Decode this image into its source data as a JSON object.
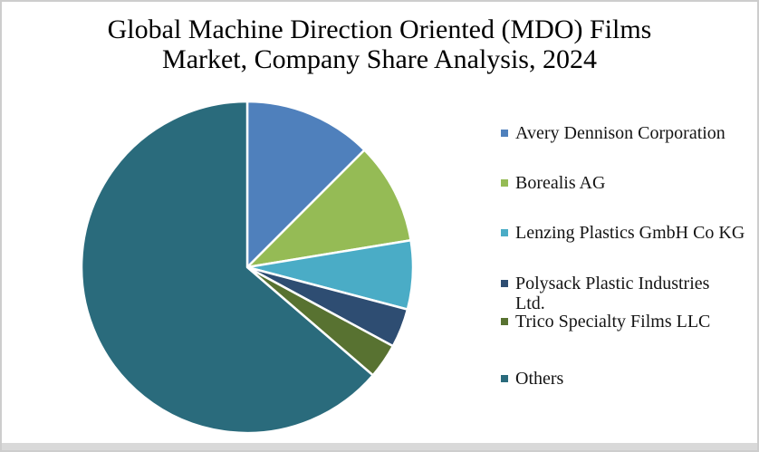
{
  "title": {
    "line1": "Global Machine Direction Oriented (MDO) Films",
    "line2": "Market, Company Share Analysis, 2024"
  },
  "chart_data": {
    "type": "pie",
    "title": "Global Machine Direction Oriented (MDO) Films Market, Company Share Analysis, 2024",
    "legend_position": "right",
    "start_angle_deg": 0,
    "direction": "clockwise",
    "slice_border_color": "#FFFFFF",
    "background_color": "#FFFFFF",
    "slices": [
      {
        "label": "Avery Dennison Corporation",
        "label_lines": [
          "Avery Dennison Corporation"
        ],
        "value_pct": 12.5,
        "color": "#4F80BC"
      },
      {
        "label": "Borealis AG",
        "label_lines": [
          "Borealis AG"
        ],
        "value_pct": 9.9,
        "color": "#95BB55"
      },
      {
        "label": "Lenzing Plastics GmbH Co KG",
        "label_lines": [
          "Lenzing Plastics GmbH Co KG"
        ],
        "value_pct": 6.7,
        "color": "#4AACC6"
      },
      {
        "label": "Polysack Plastic Industries Ltd.",
        "label_lines": [
          "Polysack Plastic Industries",
          "Ltd."
        ],
        "value_pct": 3.8,
        "color": "#2E4D72"
      },
      {
        "label": "Trico Specialty Films LLC",
        "label_lines": [
          "Trico Specialty Films LLC"
        ],
        "value_pct": 3.4,
        "color": "#587231"
      },
      {
        "label": "Others",
        "label_lines": [
          "Others"
        ],
        "value_pct": 63.7,
        "color": "#2A6B7C"
      }
    ]
  }
}
